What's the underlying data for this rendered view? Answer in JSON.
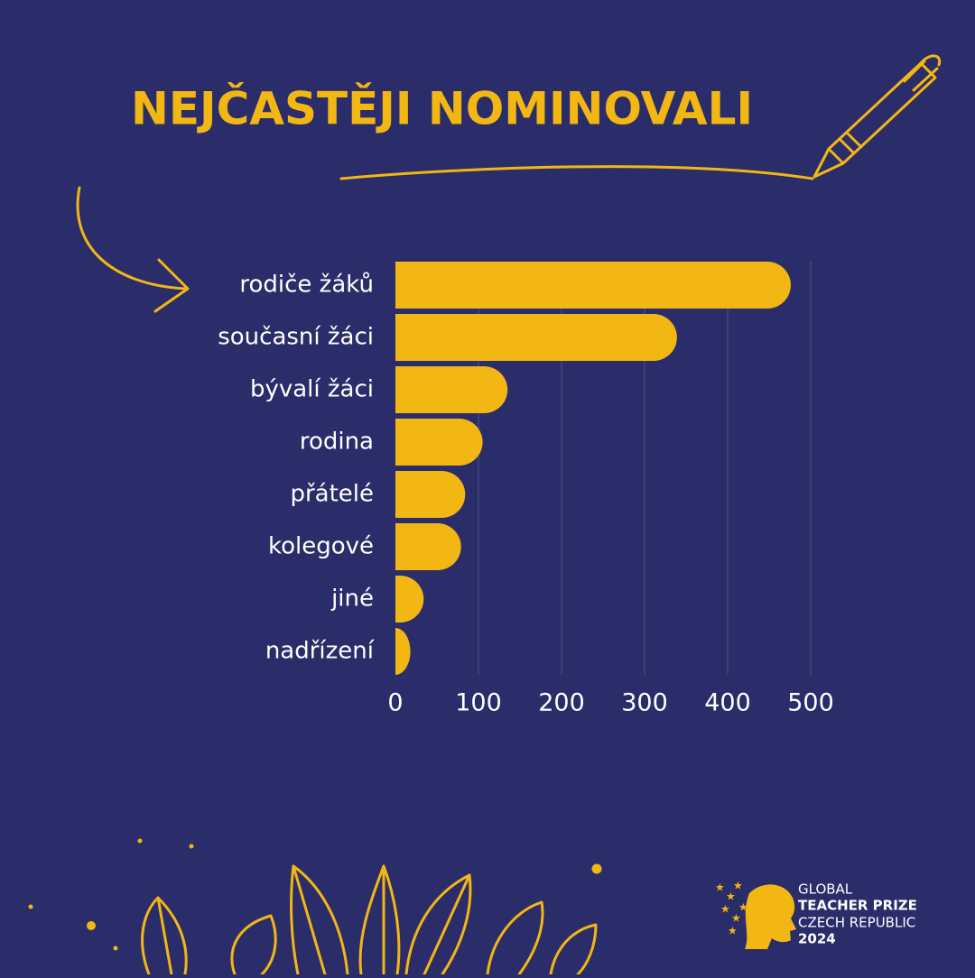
{
  "chart_data": {
    "type": "barh",
    "title": "NEJČASTĚJI NOMINOVALI",
    "categories": [
      "rodiče žáků",
      "současní žáci",
      "bývalí žáci",
      "rodina",
      "přátelé",
      "kolegové",
      "jiné",
      "nadřízení"
    ],
    "values": [
      476,
      339,
      135,
      105,
      84,
      79,
      34,
      18
    ],
    "color": "#f2b713",
    "xlim": [
      0,
      500
    ],
    "xticks": [
      0,
      100,
      200,
      300,
      400,
      500
    ],
    "grid": true
  },
  "logo": [
    "GLOBAL",
    "TEACHER PRIZE",
    "CZECH REPUBLIC",
    "2024"
  ]
}
